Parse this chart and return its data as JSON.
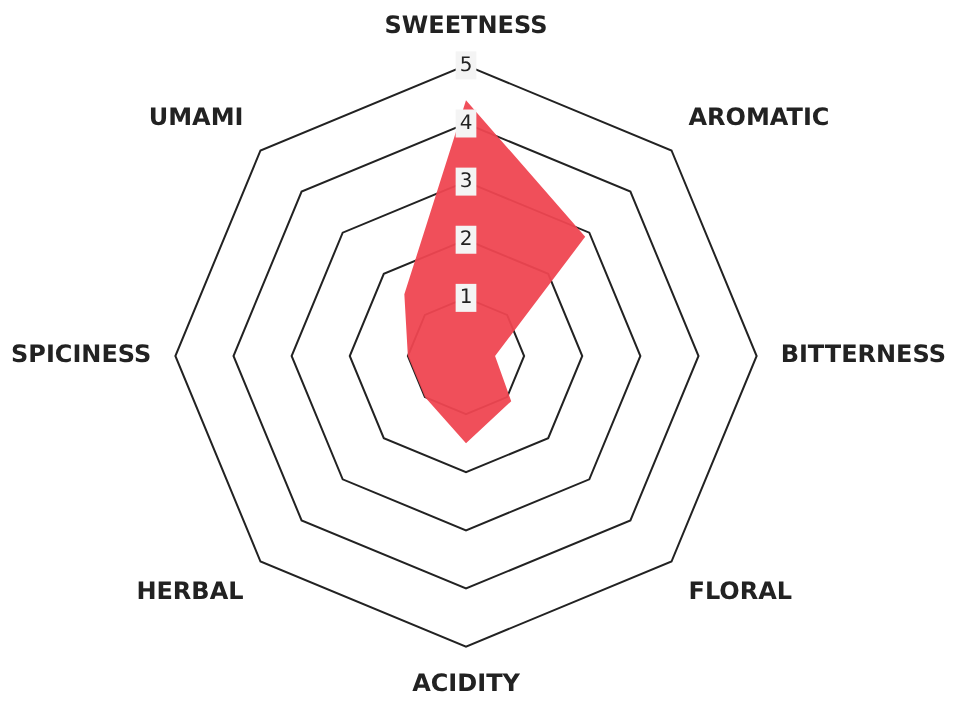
{
  "chart_data": {
    "type": "radar",
    "categories": [
      "SWEETNESS",
      "AROMATIC",
      "BITTERNESS",
      "FLORAL",
      "ACIDITY",
      "HERBAL",
      "SPICINESS",
      "UMAMI"
    ],
    "series": [
      {
        "color": "#ef4651",
        "values": [
          4.4,
          2.9,
          0.5,
          1.1,
          1.5,
          1.0,
          1.0,
          1.5
        ]
      }
    ],
    "ylim": [
      0,
      5
    ],
    "yticks": [
      1,
      2,
      3,
      4,
      5
    ],
    "grid": true,
    "legend": false,
    "marker": "none"
  }
}
